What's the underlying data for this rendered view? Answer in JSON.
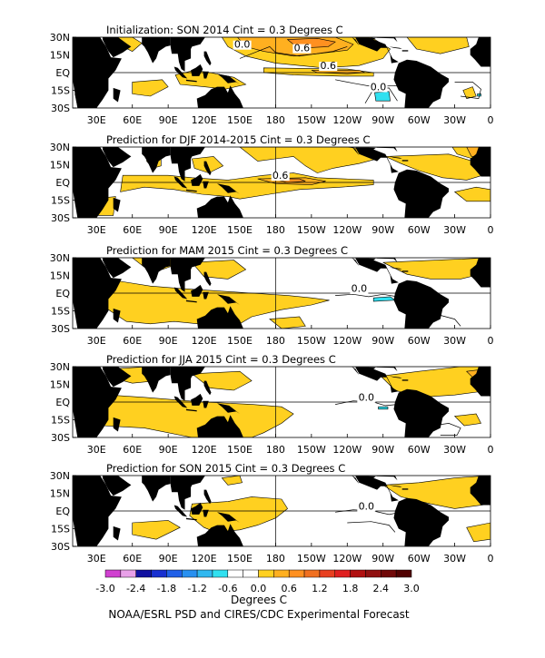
{
  "panels": [
    {
      "title": "Initialization: SON 2014   Cint = 0.3 Degrees C",
      "contour_labels": [
        {
          "text": "0.0",
          "lon": 152,
          "lat": 21
        },
        {
          "text": "0.6",
          "lon": 202,
          "lat": 18
        },
        {
          "text": "0.6",
          "lon": 224,
          "lat": 3
        },
        {
          "text": "0.0",
          "lon": 266,
          "lat": -15
        }
      ]
    },
    {
      "title": "Prediction for DJF 2014-2015   Cint = 0.3 Degrees C",
      "contour_labels": [
        {
          "text": "0.6",
          "lon": 184,
          "lat": 3
        }
      ]
    },
    {
      "title": "Prediction for MAM 2015   Cint = 0.3 Degrees C",
      "contour_labels": [
        {
          "text": "0.0",
          "lon": 250,
          "lat": 1
        }
      ]
    },
    {
      "title": "Prediction for JJA 2015   Cint = 0.3 Degrees C",
      "contour_labels": [
        {
          "text": "0.0",
          "lon": 256,
          "lat": 1
        }
      ]
    },
    {
      "title": "Prediction for SON 2015   Cint = 0.3 Degrees C",
      "contour_labels": [
        {
          "text": "0.0",
          "lon": 256,
          "lat": 1
        }
      ]
    }
  ],
  "lat_labels": [
    "30N",
    "15N",
    "EQ",
    "15S",
    "30S"
  ],
  "lon_labels": [
    "30E",
    "60E",
    "90E",
    "120E",
    "150E",
    "180",
    "150W",
    "120W",
    "90W",
    "60W",
    "30W",
    "0"
  ],
  "colorbar": {
    "tick_labels": [
      "-3.0",
      "-2.4",
      "-1.8",
      "-1.2",
      "-0.6",
      "0.0",
      "0.6",
      "1.2",
      "1.8",
      "2.4",
      "3.0"
    ],
    "unit_label": "Degrees C",
    "colors": [
      "#d040d0",
      "#e8a0e8",
      "#1010a0",
      "#1830d0",
      "#2060e8",
      "#2890f0",
      "#30b8f0",
      "#30e0f0",
      "#ffffff",
      "#ffffff",
      "#ffd020",
      "#ffb020",
      "#ff9020",
      "#f07020",
      "#e84020",
      "#e02020",
      "#b01010",
      "#901010",
      "#700808",
      "#500000"
    ]
  },
  "footer": "NOAA/ESRL PSD and CIRES/CDC Experimental Forecast",
  "colors": {
    "land": "#000000",
    "warm_1": "#ffd020",
    "warm_2": "#ffb020",
    "warm_3": "#ff9020",
    "cool": "#30e0f0"
  }
}
